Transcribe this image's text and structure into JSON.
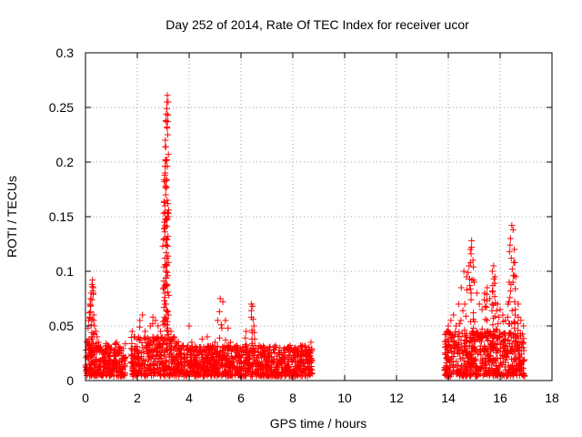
{
  "chart_data": {
    "type": "scatter",
    "title": "Day 252 of 2014, Rate Of TEC Index for receiver ucor",
    "xlabel": "GPS time / hours",
    "ylabel": "ROTI / TECUs",
    "xlim": [
      0,
      18
    ],
    "ylim": [
      0,
      0.3
    ],
    "x_ticks": [
      0,
      2,
      4,
      6,
      8,
      10,
      12,
      14,
      16,
      18
    ],
    "x_tick_labels": [
      "0",
      "2",
      "4",
      "6",
      "8",
      "10",
      "12",
      "14",
      "16",
      "18"
    ],
    "y_ticks": [
      0,
      0.05,
      0.1,
      0.15,
      0.2,
      0.25,
      0.3
    ],
    "y_tick_labels": [
      "0",
      "0.05",
      "0.1",
      "0.15",
      "0.2",
      "0.25",
      "0.3"
    ],
    "grid": true,
    "marker": "+",
    "marker_color": "#ff0000",
    "series": [
      {
        "name": "ROTI",
        "points": [
          [
            0.02,
            0.028
          ],
          [
            0.05,
            0.035
          ],
          [
            0.08,
            0.022
          ],
          [
            0.1,
            0.048
          ],
          [
            0.12,
            0.055
          ],
          [
            0.15,
            0.062
          ],
          [
            0.18,
            0.07
          ],
          [
            0.2,
            0.075
          ],
          [
            0.22,
            0.08
          ],
          [
            0.25,
            0.088
          ],
          [
            0.27,
            0.092
          ],
          [
            0.3,
            0.085
          ],
          [
            0.32,
            0.06
          ],
          [
            0.35,
            0.05
          ],
          [
            0.4,
            0.045
          ],
          [
            0.45,
            0.04
          ],
          [
            0.5,
            0.035
          ],
          [
            0.55,
            0.03
          ],
          [
            0.6,
            0.028
          ],
          [
            0.7,
            0.025
          ],
          [
            0.8,
            0.032
          ],
          [
            0.9,
            0.022
          ],
          [
            1.0,
            0.03
          ],
          [
            1.1,
            0.025
          ],
          [
            1.2,
            0.035
          ],
          [
            1.3,
            0.028
          ],
          [
            1.4,
            0.02
          ],
          [
            1.5,
            0.018
          ],
          [
            1.8,
            0.045
          ],
          [
            1.9,
            0.04
          ],
          [
            2.0,
            0.038
          ],
          [
            2.1,
            0.055
          ],
          [
            2.2,
            0.06
          ],
          [
            2.3,
            0.045
          ],
          [
            2.4,
            0.035
          ],
          [
            2.5,
            0.05
          ],
          [
            2.6,
            0.058
          ],
          [
            2.7,
            0.055
          ],
          [
            2.8,
            0.05
          ],
          [
            2.9,
            0.045
          ],
          [
            3.0,
            0.084
          ],
          [
            3.02,
            0.153
          ],
          [
            3.04,
            0.163
          ],
          [
            3.06,
            0.188
          ],
          [
            3.08,
            0.202
          ],
          [
            3.1,
            0.214
          ],
          [
            3.12,
            0.244
          ],
          [
            3.14,
            0.255
          ],
          [
            3.16,
            0.261
          ],
          [
            3.18,
            0.162
          ],
          [
            3.2,
            0.06
          ],
          [
            3.3,
            0.045
          ],
          [
            3.4,
            0.04
          ],
          [
            3.5,
            0.035
          ],
          [
            3.6,
            0.03
          ],
          [
            3.7,
            0.028
          ],
          [
            3.8,
            0.025
          ],
          [
            3.9,
            0.03
          ],
          [
            4.0,
            0.05
          ],
          [
            4.1,
            0.035
          ],
          [
            4.3,
            0.03
          ],
          [
            4.5,
            0.038
          ],
          [
            4.7,
            0.04
          ],
          [
            4.9,
            0.032
          ],
          [
            5.0,
            0.035
          ],
          [
            5.1,
            0.055
          ],
          [
            5.2,
            0.075
          ],
          [
            5.3,
            0.072
          ],
          [
            5.4,
            0.055
          ],
          [
            5.5,
            0.048
          ],
          [
            5.6,
            0.035
          ],
          [
            5.8,
            0.03
          ],
          [
            6.0,
            0.028
          ],
          [
            6.2,
            0.045
          ],
          [
            6.4,
            0.07
          ],
          [
            6.45,
            0.068
          ],
          [
            6.5,
            0.05
          ],
          [
            6.7,
            0.032
          ],
          [
            6.9,
            0.03
          ],
          [
            7.1,
            0.028
          ],
          [
            7.3,
            0.025
          ],
          [
            7.5,
            0.03
          ],
          [
            7.7,
            0.028
          ],
          [
            7.9,
            0.032
          ],
          [
            8.1,
            0.03
          ],
          [
            8.3,
            0.025
          ],
          [
            8.5,
            0.022
          ],
          [
            8.7,
            0.035
          ],
          [
            13.9,
            0.025
          ],
          [
            14.0,
            0.05
          ],
          [
            14.1,
            0.055
          ],
          [
            14.2,
            0.06
          ],
          [
            14.3,
            0.05
          ],
          [
            14.4,
            0.07
          ],
          [
            14.5,
            0.085
          ],
          [
            14.6,
            0.1
          ],
          [
            14.7,
            0.095
          ],
          [
            14.8,
            0.105
          ],
          [
            14.85,
            0.12
          ],
          [
            14.9,
            0.128
          ],
          [
            14.95,
            0.11
          ],
          [
            15.0,
            0.09
          ],
          [
            15.1,
            0.08
          ],
          [
            15.2,
            0.07
          ],
          [
            15.3,
            0.065
          ],
          [
            15.4,
            0.08
          ],
          [
            15.5,
            0.085
          ],
          [
            15.6,
            0.075
          ],
          [
            15.7,
            0.1
          ],
          [
            15.75,
            0.105
          ],
          [
            15.8,
            0.095
          ],
          [
            15.9,
            0.07
          ],
          [
            16.0,
            0.065
          ],
          [
            16.1,
            0.06
          ],
          [
            16.2,
            0.055
          ],
          [
            16.3,
            0.07
          ],
          [
            16.35,
            0.09
          ],
          [
            16.4,
            0.13
          ],
          [
            16.45,
            0.142
          ],
          [
            16.5,
            0.138
          ],
          [
            16.55,
            0.12
          ],
          [
            16.6,
            0.095
          ],
          [
            16.7,
            0.07
          ],
          [
            16.8,
            0.055
          ],
          [
            16.9,
            0.05
          ]
        ],
        "dense_bands": [
          {
            "x_start": 0.0,
            "x_end": 1.55,
            "y_min": 0.004,
            "y_max": 0.034
          },
          {
            "x_start": 1.75,
            "x_end": 3.6,
            "y_min": 0.004,
            "y_max": 0.04
          },
          {
            "x_start": 3.6,
            "x_end": 8.75,
            "y_min": 0.004,
            "y_max": 0.032
          },
          {
            "x_start": 13.85,
            "x_end": 16.95,
            "y_min": 0.004,
            "y_max": 0.045
          }
        ]
      }
    ]
  }
}
